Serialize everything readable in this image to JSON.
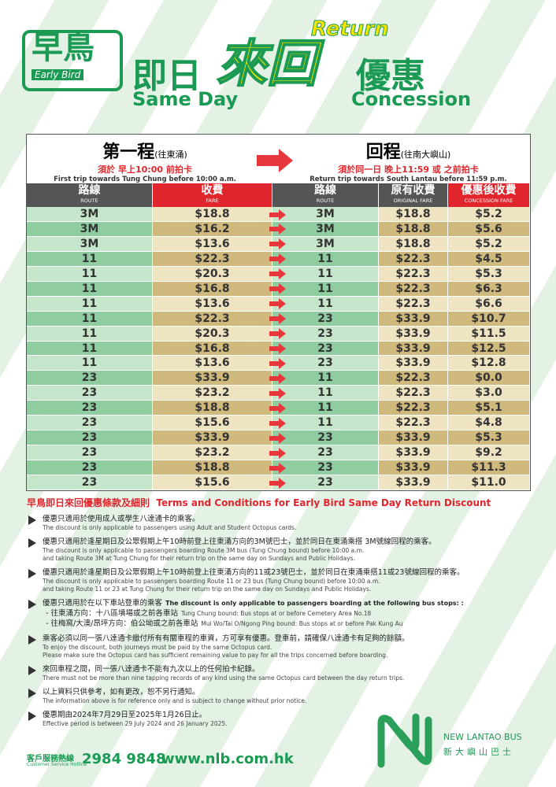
{
  "header": {
    "logo_zh": "早鳥",
    "logo_en": "Early Bird",
    "same_day_zh": "即日",
    "same_day_en": "Same Day",
    "return_zh": "來回",
    "return_en": "Return",
    "concession_zh": "優惠",
    "concession_en": "Concession"
  },
  "table": {
    "first": {
      "title": "第一程",
      "direction": "(往東涌)",
      "rule": "須於 早上10:00 前拍卡",
      "en": "First trip towards Tung Chung before 10:00 a.m."
    },
    "return": {
      "title": "回程",
      "direction": "(往南大嶼山)",
      "rule": "須於同一日 晚上11:59 或 之前拍卡",
      "en": "Return trip towards South Lantau before 11:59 p.m."
    },
    "columns": [
      {
        "zh": "路線",
        "en": "ROUTE"
      },
      {
        "zh": "收費",
        "en": "FARE"
      },
      {
        "zh": "路線",
        "en": "ROUTE"
      },
      {
        "zh": "原有收費",
        "en": "ORIGINAL FARE"
      },
      {
        "zh": "優惠後收費",
        "en": "CONCESSION FARE"
      }
    ],
    "rows": [
      [
        "3M",
        "$18.8",
        "3M",
        "$18.8",
        "$5.2"
      ],
      [
        "3M",
        "$16.2",
        "3M",
        "$18.8",
        "$5.6"
      ],
      [
        "3M",
        "$13.6",
        "3M",
        "$18.8",
        "$5.2"
      ],
      [
        "11",
        "$22.3",
        "11",
        "$22.3",
        "$4.5"
      ],
      [
        "11",
        "$20.3",
        "11",
        "$22.3",
        "$5.3"
      ],
      [
        "11",
        "$16.8",
        "11",
        "$22.3",
        "$6.3"
      ],
      [
        "11",
        "$13.6",
        "11",
        "$22.3",
        "$6.6"
      ],
      [
        "11",
        "$22.3",
        "23",
        "$33.9",
        "$10.7"
      ],
      [
        "11",
        "$20.3",
        "23",
        "$33.9",
        "$11.5"
      ],
      [
        "11",
        "$16.8",
        "23",
        "$33.9",
        "$12.5"
      ],
      [
        "11",
        "$13.6",
        "23",
        "$33.9",
        "$12.8"
      ],
      [
        "23",
        "$33.9",
        "11",
        "$22.3",
        "$0.0"
      ],
      [
        "23",
        "$23.2",
        "11",
        "$22.3",
        "$3.0"
      ],
      [
        "23",
        "$18.8",
        "11",
        "$22.3",
        "$5.1"
      ],
      [
        "23",
        "$15.6",
        "11",
        "$22.3",
        "$4.8"
      ],
      [
        "23",
        "$33.9",
        "23",
        "$33.9",
        "$5.3"
      ],
      [
        "23",
        "$23.2",
        "23",
        "$33.9",
        "$9.2"
      ],
      [
        "23",
        "$18.8",
        "23",
        "$33.9",
        "$11.3"
      ],
      [
        "23",
        "$15.6",
        "23",
        "$33.9",
        "$11.0"
      ]
    ]
  },
  "terms": {
    "title_zh": "早鳥即日來回優惠條款及細則",
    "title_en": "Terms and Conditions for Early Bird Same Day Return Discount",
    "items": [
      {
        "zh": "優惠只適用於使用成人或學生八達通卡的乘客。",
        "en": [
          "The discount is only applicable to passengers using Adult and Student Octopus cards."
        ]
      },
      {
        "zh": "優惠只適用於逢星期日及公眾假期上午10時前登上往東涌方向的3M號巴士，並於同日在東涌乘搭 3M號線回程的乘客。",
        "en": [
          "The discount is only applicable to passengers boarding Route 3M bus (Tung Chung bound) before 10:00 a.m.",
          "and taking Route 3M at Tung Chung for their return trip on the same day on Sundays and Public Holidays."
        ]
      },
      {
        "zh": "優惠只適用於逢星期日及公眾假期上午10時前登上往東涌方向的11或23號巴士，並於同日在東涌乘搭11或23號線回程的乘客。",
        "en": [
          "The discount is only applicable to passengers boarding Route 11 or 23 bus (Tung Chung bound) before 10:00 a.m.",
          "and taking Route 11 or 23 at Tung Chung for their return trip on the same day on Sundays and Public Holidays."
        ]
      },
      {
        "zh": "優惠只適用於在以下車站登車的乘客",
        "en": [
          "The discount is only applicable to passengers boarding at the following bus stops: :"
        ],
        "stops": [
          {
            "zh": "- 往東涌方向：十八區墳場或之前各車站",
            "en": "Tung Chung bound: Bus stops at or before Cemetery Area No.18"
          },
          {
            "zh": "- 往梅窩/大澳/昂坪方向：伯公坳或之前各車站",
            "en": "Mui Wo/Tai O/Ngong Ping bound: Bus stops at or before Pak Kung Au"
          }
        ]
      },
      {
        "zh": "乘客必須以同一張八達通卡繳付所有有關車程的車資，方可享有優惠。登車前，請確保八達通卡有足夠的餘額。",
        "en": [
          "To enjoy the discount, both journeys must be paid by the same Octopus card.",
          "Please make sure the Octopus card has sufficient remaining value to pay for all the trips concerned before boarding."
        ]
      },
      {
        "zh": "來回車程之間，同一張八達通卡不能有九次以上的任何拍卡紀錄。",
        "en": [
          "There must not be more than nine tapping records of any kind using the same Octopus card between the day return trips."
        ]
      },
      {
        "zh": "以上資料只供參考，如有更改，恕不另行通知。",
        "en": [
          "The information above is for reference only and is subject to change without prior notice."
        ]
      },
      {
        "zh": "優惠期由2024年7月29日至2025年1月26日止。",
        "en": [
          "Effective period is between 29 July 2024 and 26 January 2025."
        ]
      }
    ]
  },
  "footer": {
    "hotline_zh": "客戶服務熱線",
    "hotline_en": "Customer Service Hotline",
    "phone": "2984 9848",
    "website": "www.nlb.com.hk",
    "company_en": "NEW LANTAO BUS",
    "company_zh": "新大嶼山巴士"
  }
}
